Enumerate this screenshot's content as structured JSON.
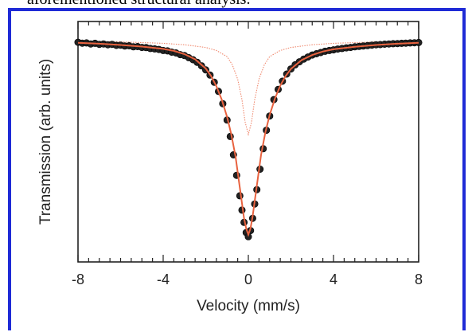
{
  "caption_fragment": "aforementioned structural analysis.",
  "colors": {
    "frame": "#1f2bd6",
    "fit_total": "#e8623f",
    "fit_component": "#f08a70",
    "points": "#222222"
  },
  "chart_data": {
    "type": "scatter",
    "title": "",
    "xlabel": "Velocity (mm/s)",
    "ylabel": "Transmission (arb. units)",
    "xlim": [
      -8,
      8
    ],
    "ylim": [
      0,
      1
    ],
    "xticks": [
      -8,
      -4,
      0,
      4,
      8
    ],
    "y_tick_labels_shown": false,
    "grid": false,
    "legend": "none",
    "series": [
      {
        "kind": "points",
        "x": [
          -8.0,
          -7.8,
          -7.6,
          -7.4,
          -7.2,
          -7.0,
          -6.8,
          -6.6,
          -6.4,
          -6.2,
          -6.0,
          -5.8,
          -5.6,
          -5.4,
          -5.2,
          -5.0,
          -4.8,
          -4.6,
          -4.4,
          -4.2,
          -4.0,
          -3.8,
          -3.6,
          -3.4,
          -3.2,
          -3.0,
          -2.8,
          -2.6,
          -2.4,
          -2.2,
          -2.0,
          -1.8,
          -1.6,
          -1.4,
          -1.2,
          -1.0,
          -0.85,
          -0.7,
          -0.55,
          -0.4,
          -0.3,
          -0.2,
          -0.1,
          0.0,
          0.1,
          0.2,
          0.3,
          0.4,
          0.55,
          0.7,
          0.85,
          1.0,
          1.2,
          1.4,
          1.6,
          1.8,
          2.0,
          2.2,
          2.4,
          2.6,
          2.8,
          3.0,
          3.2,
          3.4,
          3.6,
          3.8,
          4.0,
          4.2,
          4.4,
          4.6,
          4.8,
          5.0,
          5.2,
          5.4,
          5.6,
          5.8,
          6.0,
          6.2,
          6.4,
          6.6,
          6.8,
          7.0,
          7.2,
          7.4,
          7.6,
          7.8,
          8.0
        ],
        "y": [
          0.98,
          0.976,
          0.977,
          0.972,
          0.975,
          0.97,
          0.972,
          0.968,
          0.97,
          0.965,
          0.966,
          0.962,
          0.963,
          0.958,
          0.959,
          0.955,
          0.954,
          0.95,
          0.948,
          0.945,
          0.94,
          0.938,
          0.932,
          0.928,
          0.92,
          0.915,
          0.905,
          0.895,
          0.882,
          0.865,
          0.845,
          0.82,
          0.785,
          0.74,
          0.68,
          0.6,
          0.52,
          0.43,
          0.33,
          0.23,
          0.16,
          0.1,
          0.05,
          0.03,
          0.06,
          0.12,
          0.19,
          0.26,
          0.36,
          0.46,
          0.55,
          0.62,
          0.7,
          0.75,
          0.79,
          0.825,
          0.85,
          0.87,
          0.885,
          0.898,
          0.908,
          0.918,
          0.924,
          0.93,
          0.936,
          0.94,
          0.943,
          0.947,
          0.95,
          0.953,
          0.955,
          0.958,
          0.96,
          0.962,
          0.964,
          0.966,
          0.968,
          0.969,
          0.971,
          0.972,
          0.973,
          0.974,
          0.975,
          0.976,
          0.977,
          0.978,
          0.979
        ]
      },
      {
        "kind": "fit_total",
        "x": [
          -8,
          -7,
          -6,
          -5,
          -4,
          -3.5,
          -3,
          -2.5,
          -2,
          -1.75,
          -1.5,
          -1.25,
          -1,
          -0.8,
          -0.6,
          -0.4,
          -0.2,
          -0.1,
          0,
          0.1,
          0.2,
          0.4,
          0.6,
          0.8,
          1,
          1.25,
          1.5,
          1.75,
          2,
          2.5,
          3,
          3.5,
          4,
          5,
          6,
          7,
          8
        ],
        "y": [
          0.978,
          0.973,
          0.967,
          0.959,
          0.948,
          0.938,
          0.922,
          0.897,
          0.852,
          0.815,
          0.765,
          0.7,
          0.615,
          0.53,
          0.42,
          0.27,
          0.12,
          0.07,
          0.04,
          0.07,
          0.13,
          0.28,
          0.43,
          0.54,
          0.625,
          0.705,
          0.768,
          0.815,
          0.85,
          0.893,
          0.918,
          0.935,
          0.946,
          0.958,
          0.967,
          0.973,
          0.978
        ]
      },
      {
        "kind": "fit_component",
        "x": [
          -8,
          -6,
          -4,
          -3,
          -2,
          -1.5,
          -1,
          -0.75,
          -0.5,
          -0.3,
          -0.15,
          0,
          0.15,
          0.3,
          0.5,
          0.75,
          1,
          1.5,
          2,
          3,
          4,
          6,
          8
        ],
        "y": [
          0.985,
          0.982,
          0.975,
          0.968,
          0.955,
          0.94,
          0.91,
          0.87,
          0.8,
          0.7,
          0.59,
          0.53,
          0.59,
          0.7,
          0.8,
          0.87,
          0.91,
          0.94,
          0.955,
          0.968,
          0.975,
          0.982,
          0.985
        ]
      }
    ]
  }
}
